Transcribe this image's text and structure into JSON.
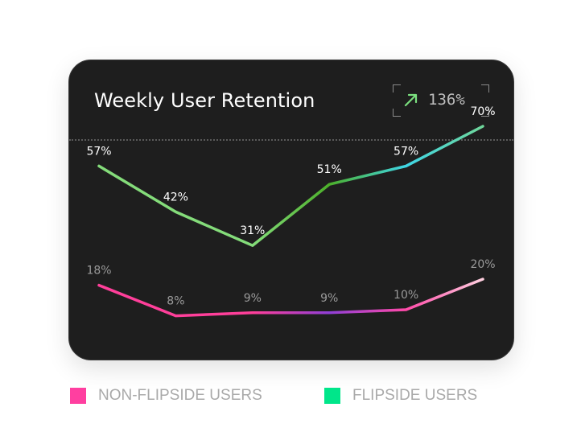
{
  "card": {
    "title": "Weekly User Retention",
    "badge": {
      "icon": "arrow-up-right-icon",
      "value": "136%",
      "icon_color": "#7be07f"
    }
  },
  "chart_data": {
    "type": "line",
    "title": "Weekly User Retention",
    "x": [
      1,
      2,
      3,
      4,
      5,
      6
    ],
    "ylim": [
      0,
      80
    ],
    "grid": false,
    "legend_position": "bottom",
    "series": [
      {
        "name": "FLIPSIDE USERS",
        "values": [
          57,
          42,
          31,
          51,
          57,
          70
        ],
        "labels": [
          "57%",
          "42%",
          "31%",
          "51%",
          "57%",
          "70%"
        ],
        "legend_color": "#00e68a",
        "gradient": [
          "#84dc7a",
          "#84dc7a",
          "#84dc7a",
          "#4caf2a",
          "#3fd6e6",
          "#6fd69a"
        ],
        "label_color": "#ffffff"
      },
      {
        "name": "NON-FLIPSIDE USERS",
        "values": [
          18,
          8,
          9,
          9,
          10,
          20
        ],
        "labels": [
          "18%",
          "8%",
          "9%",
          "9%",
          "10%",
          "20%"
        ],
        "legend_color": "#ff3fa0",
        "gradient": [
          "#ff3f9a",
          "#ff3f9a",
          "#ff3f9a",
          "#8f3fd6",
          "#ff4aa8",
          "#ffd0e0"
        ],
        "label_color": "#9a9a9a"
      }
    ]
  },
  "legend": [
    {
      "label": "NON-FLIPSIDE USERS",
      "color": "#ff3fa0"
    },
    {
      "label": "FLIPSIDE USERS",
      "color": "#00e68a"
    }
  ]
}
